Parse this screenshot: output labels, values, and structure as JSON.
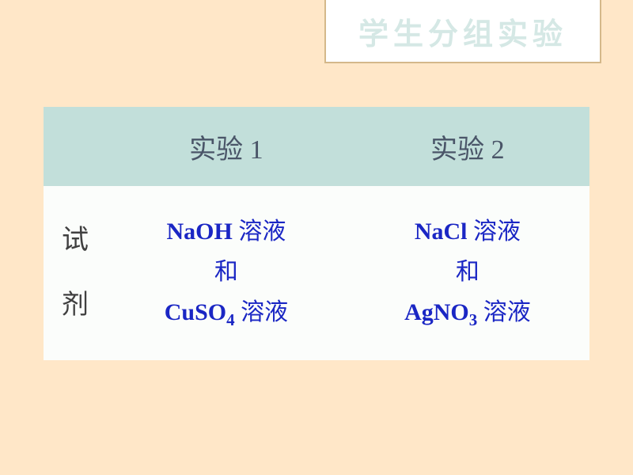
{
  "title": "学生分组实验",
  "table": {
    "background_color": "#fbfdfb",
    "header_bg": "#c2dfda",
    "header_text_color": "#4a5568",
    "label_text_color": "#404040",
    "cell_text_color": "#1a26c4",
    "columns": {
      "exp1": "实验 1",
      "exp2": "实验 2"
    },
    "row_label_top": "试",
    "row_label_bottom": "剂",
    "cells": {
      "exp1_line1a": "NaOH",
      "exp1_line1b": "溶液",
      "exp1_line2": "和",
      "exp1_line3a": "CuSO",
      "exp1_line3sub": "4",
      "exp1_line3b": "溶液",
      "exp2_line1a": "NaCl",
      "exp2_line1b": "溶液",
      "exp2_line2": "和",
      "exp2_line3a": "AgNO",
      "exp2_line3sub": "3",
      "exp2_line3b": "溶液"
    }
  },
  "style": {
    "page_bg": "#ffe7c8",
    "title_box_bg": "#ffffff",
    "title_text_color": "#d5e8e5",
    "title_fontsize": 38,
    "header_fontsize": 34,
    "cell_fontsize": 30,
    "title_border_color": "#d4b88a"
  }
}
